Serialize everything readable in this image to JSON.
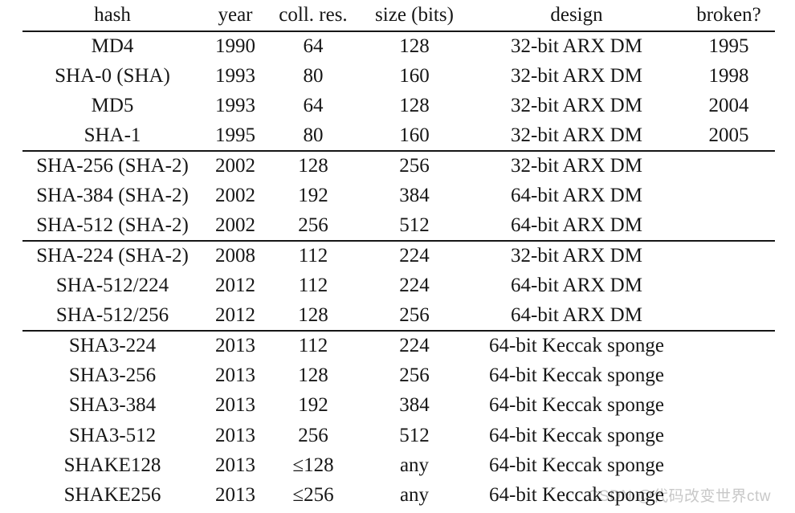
{
  "table": {
    "columns": [
      {
        "key": "hash",
        "label": "hash"
      },
      {
        "key": "year",
        "label": "year"
      },
      {
        "key": "coll_res",
        "label": "coll. res."
      },
      {
        "key": "size",
        "label": "size (bits)"
      },
      {
        "key": "design",
        "label": "design"
      },
      {
        "key": "broken",
        "label": "broken?"
      }
    ],
    "groups": [
      {
        "rows": [
          {
            "hash": "MD4",
            "year": "1990",
            "coll_res": "64",
            "size": "128",
            "design": "32-bit ARX DM",
            "broken": "1995"
          },
          {
            "hash": "SHA-0 (SHA)",
            "year": "1993",
            "coll_res": "80",
            "size": "160",
            "design": "32-bit ARX DM",
            "broken": "1998"
          },
          {
            "hash": "MD5",
            "year": "1993",
            "coll_res": "64",
            "size": "128",
            "design": "32-bit ARX DM",
            "broken": "2004"
          },
          {
            "hash": "SHA-1",
            "year": "1995",
            "coll_res": "80",
            "size": "160",
            "design": "32-bit ARX DM",
            "broken": "2005"
          }
        ]
      },
      {
        "rows": [
          {
            "hash": "SHA-256 (SHA-2)",
            "year": "2002",
            "coll_res": "128",
            "size": "256",
            "design": "32-bit ARX DM",
            "broken": ""
          },
          {
            "hash": "SHA-384 (SHA-2)",
            "year": "2002",
            "coll_res": "192",
            "size": "384",
            "design": "64-bit ARX DM",
            "broken": ""
          },
          {
            "hash": "SHA-512 (SHA-2)",
            "year": "2002",
            "coll_res": "256",
            "size": "512",
            "design": "64-bit ARX DM",
            "broken": ""
          }
        ]
      },
      {
        "rows": [
          {
            "hash": "SHA-224 (SHA-2)",
            "year": "2008",
            "coll_res": "112",
            "size": "224",
            "design": "32-bit ARX DM",
            "broken": ""
          },
          {
            "hash": "SHA-512/224",
            "year": "2012",
            "coll_res": "112",
            "size": "224",
            "design": "64-bit ARX DM",
            "broken": ""
          },
          {
            "hash": "SHA-512/256",
            "year": "2012",
            "coll_res": "128",
            "size": "256",
            "design": "64-bit ARX DM",
            "broken": ""
          }
        ]
      },
      {
        "rows": [
          {
            "hash": "SHA3-224",
            "year": "2013",
            "coll_res": "112",
            "size": "224",
            "design": "64-bit Keccak sponge",
            "broken": ""
          },
          {
            "hash": "SHA3-256",
            "year": "2013",
            "coll_res": "128",
            "size": "256",
            "design": "64-bit Keccak sponge",
            "broken": ""
          },
          {
            "hash": "SHA3-384",
            "year": "2013",
            "coll_res": "192",
            "size": "384",
            "design": "64-bit Keccak sponge",
            "broken": ""
          },
          {
            "hash": "SHA3-512",
            "year": "2013",
            "coll_res": "256",
            "size": "512",
            "design": "64-bit Keccak sponge",
            "broken": ""
          },
          {
            "hash": "SHAKE128",
            "year": "2013",
            "coll_res": "≤128",
            "size": "any",
            "design": "64-bit Keccak sponge",
            "broken": ""
          },
          {
            "hash": "SHAKE256",
            "year": "2013",
            "coll_res": "≤256",
            "size": "any",
            "design": "64-bit Keccak sponge",
            "broken": ""
          }
        ]
      }
    ]
  },
  "watermark": {
    "text": "CSDN @代码改变世界ctw",
    "color": "#c8c8c8"
  },
  "colors": {
    "text": "#161616",
    "rule": "#161616",
    "background": "#ffffff"
  }
}
